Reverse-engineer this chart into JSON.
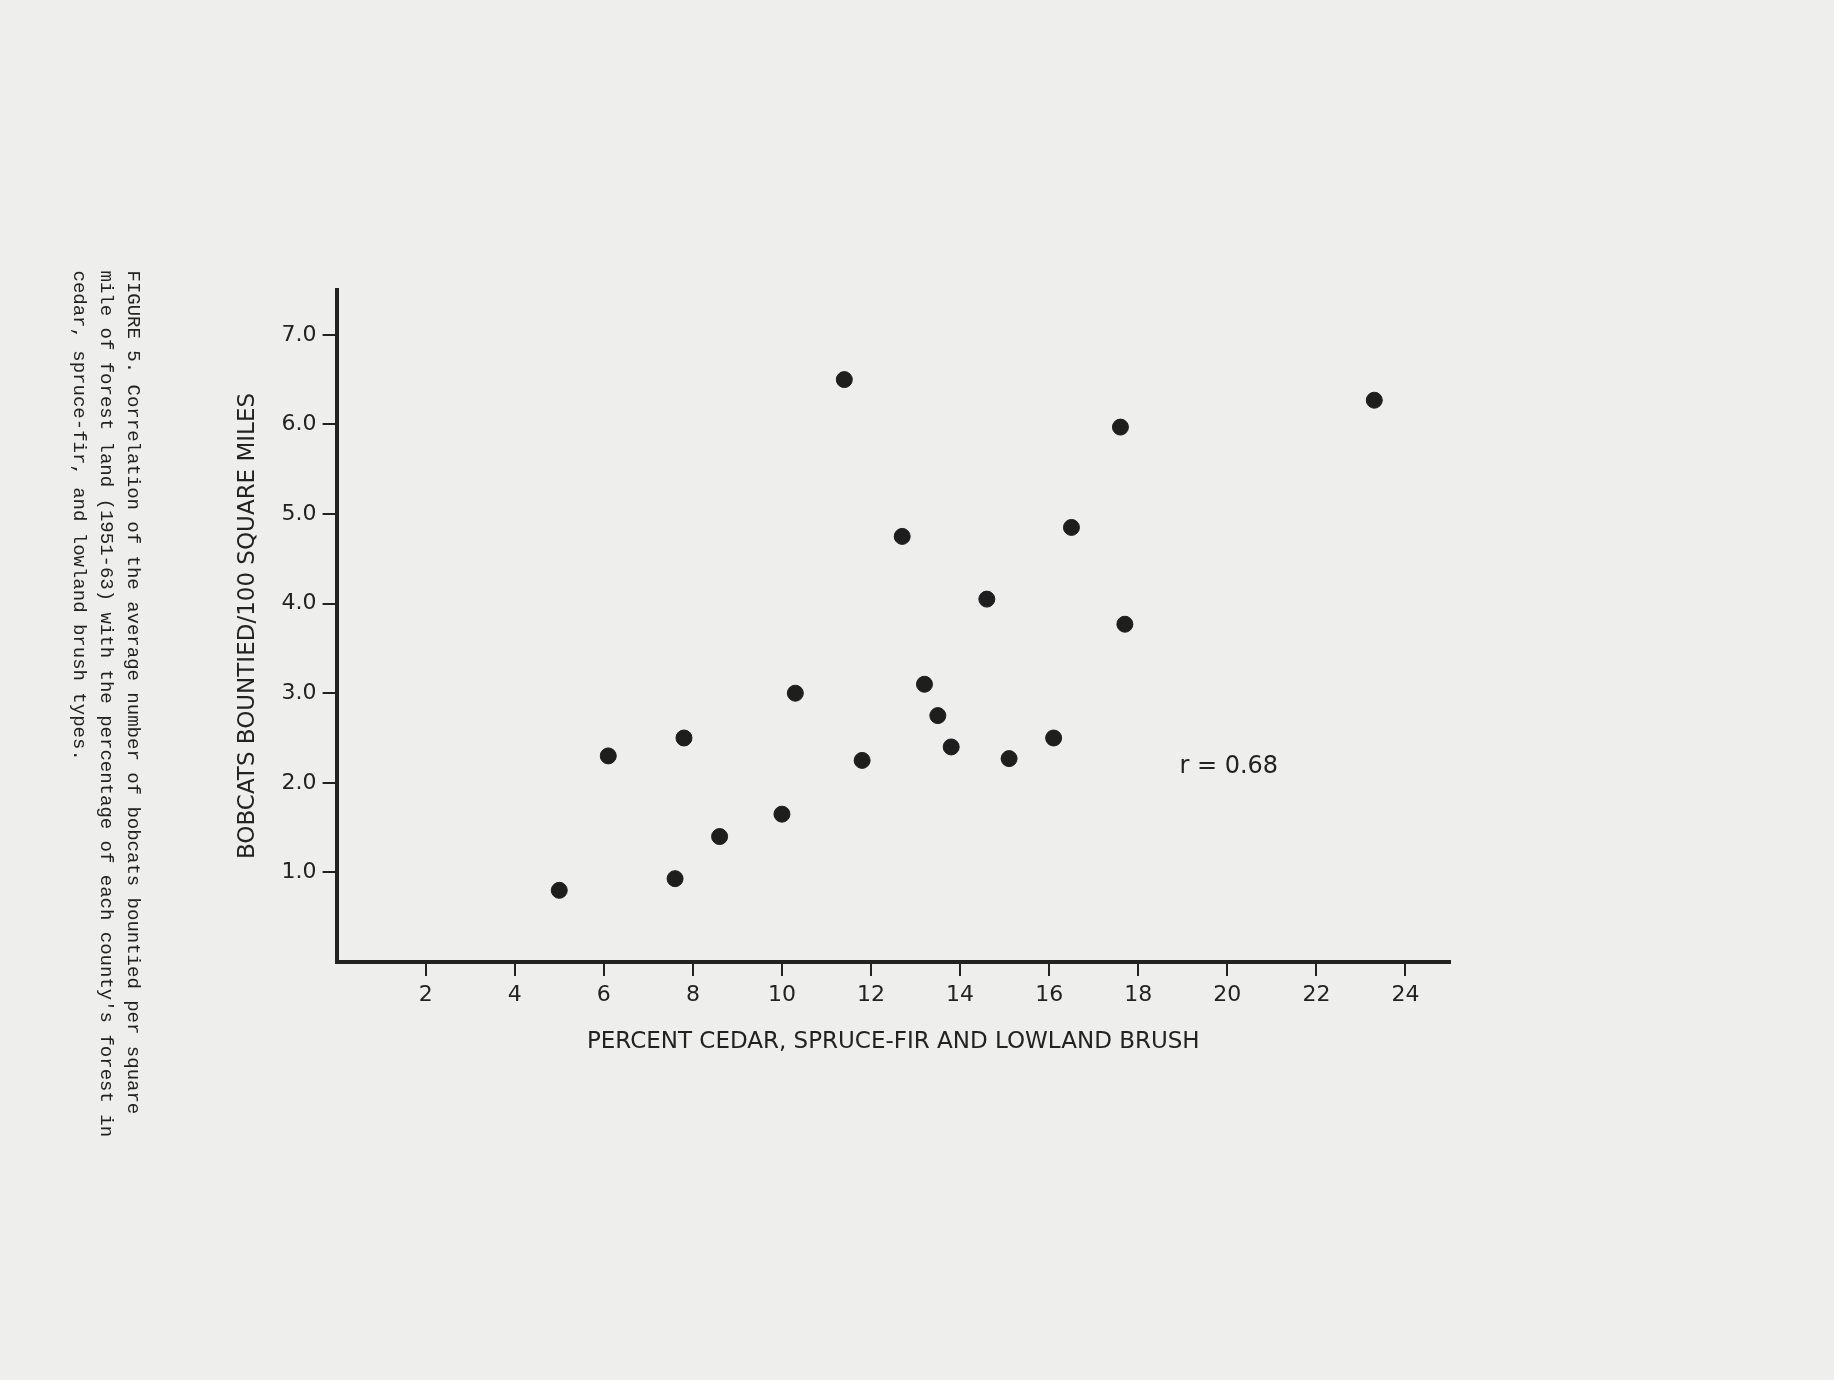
{
  "chart_data": {
    "type": "scatter",
    "title": "FIGURE 5.  Correlation of the average number of bobcats bountied per square mile of forest land (1951-63) with the percentage of each county's forest in cedar, spruce-fir, and lowland brush types.",
    "xlabel": "PERCENT CEDAR, SPRUCE-FIR AND LOWLAND BRUSH",
    "ylabel": "BOBCATS BOUNTIED/100 SQUARE MILES",
    "annotations": [
      "r = 0.68"
    ],
    "x": [
      5.0,
      6.1,
      7.6,
      7.8,
      8.6,
      10.0,
      10.3,
      11.4,
      11.8,
      12.7,
      13.2,
      13.5,
      13.8,
      14.6,
      15.1,
      16.1,
      16.5,
      17.6,
      17.7,
      23.3
    ],
    "values": [
      0.8,
      2.3,
      0.93,
      2.5,
      1.4,
      1.65,
      3.0,
      6.5,
      2.25,
      4.75,
      3.1,
      2.75,
      2.4,
      4.05,
      2.27,
      2.5,
      4.85,
      5.97,
      3.77,
      6.27
    ],
    "color": "#1e1e1e",
    "marker": "circle",
    "grid": false,
    "legend": false,
    "xlim": [
      0,
      25
    ],
    "xticks": [
      2,
      4,
      6,
      8,
      10,
      12,
      14,
      16,
      18,
      20,
      22,
      24
    ],
    "ylim": [
      0,
      7.5
    ],
    "yticks": [
      {
        "value": 1,
        "label": "1.0"
      },
      {
        "value": 2,
        "label": "2.0"
      },
      {
        "value": 3,
        "label": "3.0"
      },
      {
        "value": 4,
        "label": "4.0"
      },
      {
        "value": 5,
        "label": "5.0"
      },
      {
        "value": 6,
        "label": "6.0"
      },
      {
        "value": 7,
        "label": "7.0"
      }
    ]
  }
}
